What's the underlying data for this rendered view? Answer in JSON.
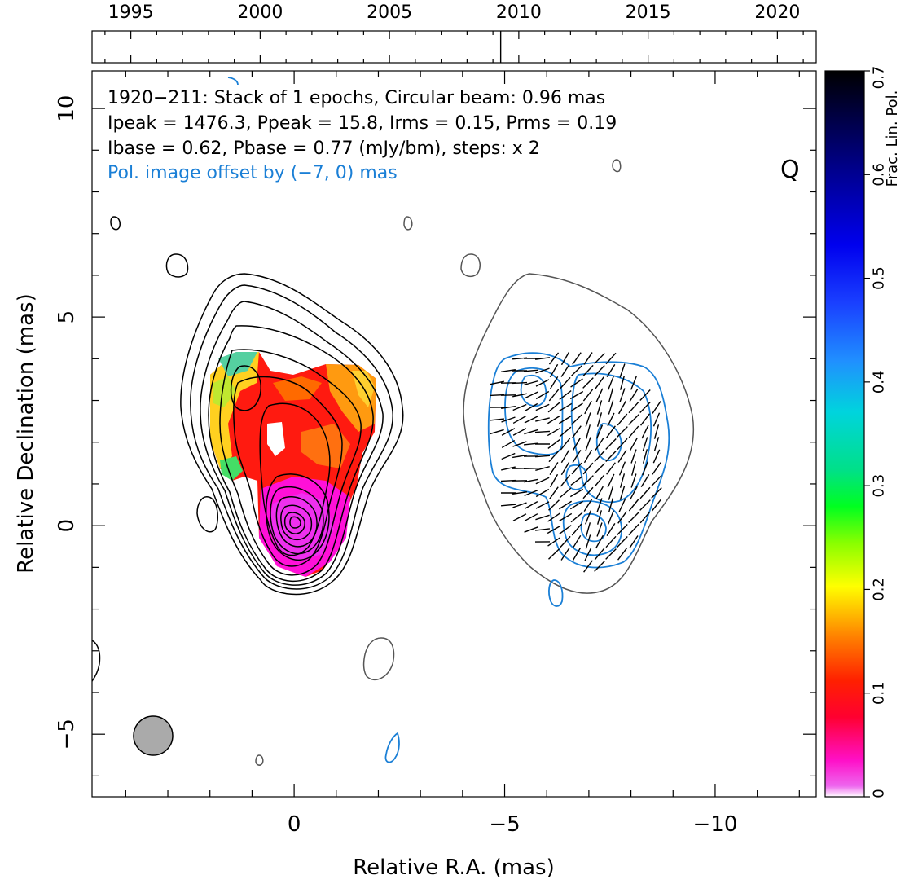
{
  "chart_data": {
    "type": "contour",
    "source": "1920-211",
    "stokes_letter": "Q",
    "header_lines": [
      "1920−211: Stack of 1 epochs, Circular beam: 0.96 mas",
      "Ipeak = 1476.3, Ppeak = 15.8, Irms = 0.15, Prms = 0.19",
      "Ibase = 0.62, Pbase = 0.77 (mJy/bm), steps: x 2"
    ],
    "offset_note": "Pol. image offset by (−7, 0) mas",
    "xlabel": "Relative R.A. (mas)",
    "ylabel": "Relative Declination (mas)",
    "xlim": [
      4.8,
      -12.4
    ],
    "ylim": [
      -6.5,
      10.9
    ],
    "x_ticks": [
      0,
      -5,
      -10
    ],
    "x_tick_labels": [
      "0",
      "−5",
      "−10"
    ],
    "y_ticks": [
      -5,
      0,
      5,
      10
    ],
    "y_tick_labels": [
      "−5",
      "0",
      "5",
      "10"
    ],
    "timeline": {
      "range": [
        1993.5,
        2021.5
      ],
      "ticks": [
        1995,
        2000,
        2005,
        2010,
        2015,
        2020
      ],
      "tick_labels": [
        "1995",
        "2000",
        "2005",
        "2010",
        "2015",
        "2020"
      ],
      "epochs": [
        2009.3
      ]
    },
    "colorbar": {
      "label": "Frac. Lin. Pol.",
      "range": [
        0,
        0.7
      ],
      "ticks": [
        0,
        0.1,
        0.2,
        0.3,
        0.4,
        0.5,
        0.6,
        0.7
      ],
      "tick_labels": [
        "0",
        "0.1",
        "0.2",
        "0.3",
        "0.4",
        "0.5",
        "0.6",
        "0.7"
      ]
    },
    "beam": {
      "ra": 3.45,
      "dec": -5.05,
      "diameter": 0.96
    },
    "pol_offset_mas": [
      -7,
      0
    ],
    "colors": {
      "total_intensity": "#000000",
      "pol_contours": "#1a7fd6",
      "pol_outline": "#555555",
      "beam": "#aaaaaa",
      "offset_note": "#1a7fd6"
    }
  }
}
